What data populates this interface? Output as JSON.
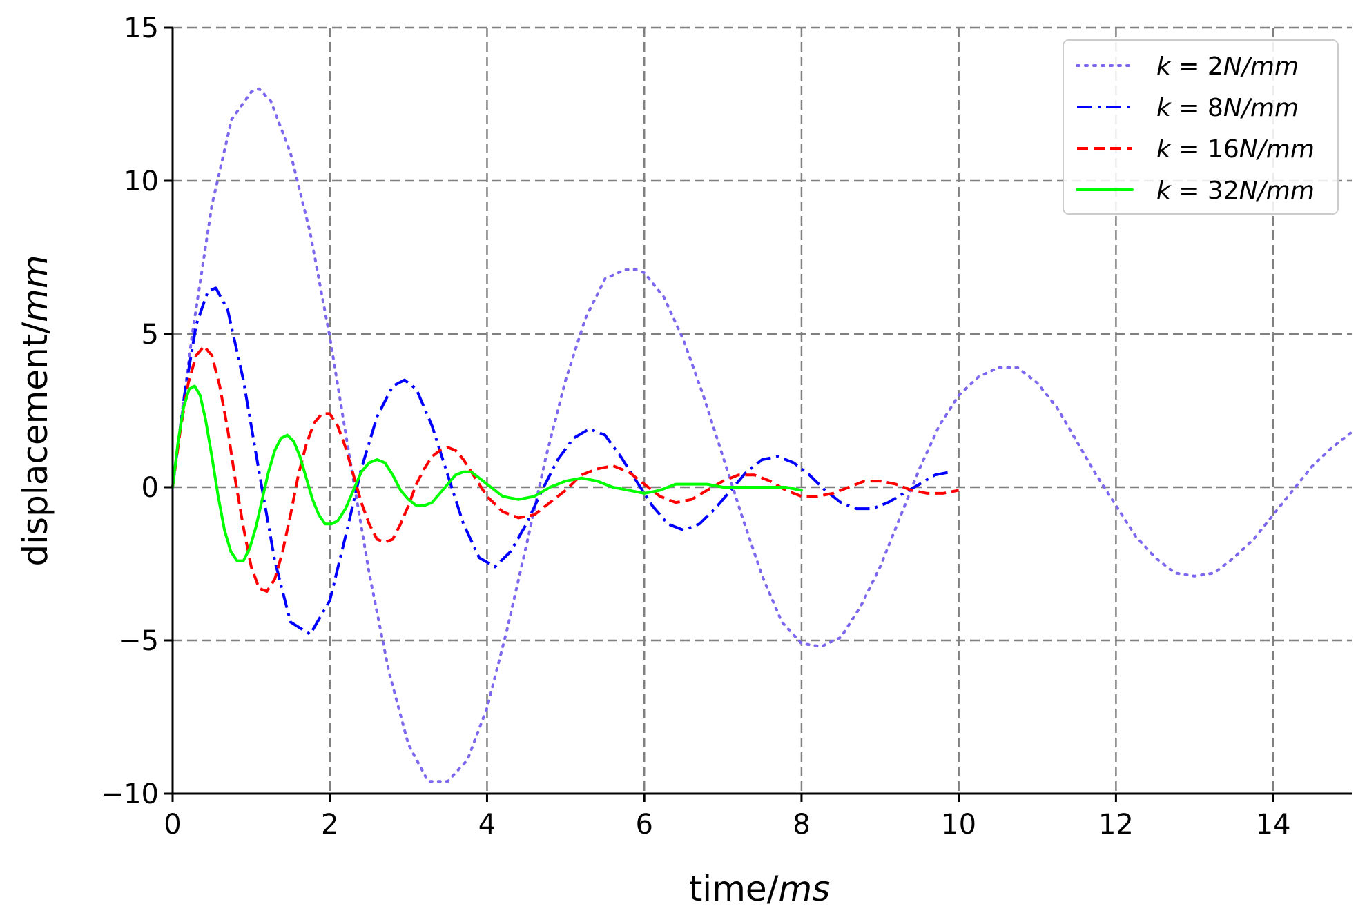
{
  "chart_data": {
    "type": "line",
    "title": "",
    "xlabel": {
      "prefix": "time/",
      "unit": "ms"
    },
    "ylabel": {
      "prefix": "displacement/",
      "unit": "mm"
    },
    "xlim": [
      0,
      15
    ],
    "ylim": [
      -10,
      15
    ],
    "xticks": [
      "0",
      "2",
      "4",
      "6",
      "8",
      "10",
      "12",
      "14"
    ],
    "yticks": [
      "−10",
      "−5",
      "0",
      "5",
      "10",
      "15"
    ],
    "grid": true,
    "legend_position": "top-right",
    "series": [
      {
        "name": "k = 2N/mm",
        "legend": {
          "var": "k",
          "eq": " = ",
          "num": "2",
          "unit": "N/mm"
        },
        "color": "#7b68ee",
        "linestyle": "dotted",
        "x": [
          0,
          0.25,
          0.5,
          0.75,
          1.0,
          1.1,
          1.25,
          1.5,
          1.75,
          2.0,
          2.25,
          2.5,
          2.75,
          3.0,
          3.25,
          3.5,
          3.75,
          4.0,
          4.25,
          4.5,
          4.75,
          5.0,
          5.25,
          5.5,
          5.75,
          5.9,
          6.0,
          6.25,
          6.5,
          6.75,
          7.0,
          7.25,
          7.5,
          7.75,
          8.0,
          8.25,
          8.5,
          8.75,
          9.0,
          9.25,
          9.5,
          9.75,
          10.0,
          10.25,
          10.5,
          10.65,
          10.75,
          11.0,
          11.25,
          11.5,
          11.75,
          12.0,
          12.25,
          12.5,
          12.75,
          13.0,
          13.25,
          13.5,
          13.75,
          14.0,
          14.25,
          14.5,
          14.75,
          15.0
        ],
        "y": [
          0,
          5.0,
          9.2,
          12.0,
          12.9,
          13.0,
          12.6,
          10.9,
          8.3,
          4.9,
          1.0,
          -2.8,
          -6.0,
          -8.4,
          -9.6,
          -9.6,
          -8.9,
          -7.2,
          -4.7,
          -1.9,
          1.0,
          3.5,
          5.5,
          6.8,
          7.1,
          7.1,
          7.0,
          6.2,
          4.8,
          3.0,
          1.0,
          -1.0,
          -2.9,
          -4.4,
          -5.1,
          -5.2,
          -4.9,
          -3.9,
          -2.6,
          -1.0,
          0.6,
          2.0,
          3.0,
          3.6,
          3.9,
          3.9,
          3.9,
          3.4,
          2.6,
          1.5,
          0.4,
          -0.6,
          -1.6,
          -2.3,
          -2.8,
          -2.9,
          -2.8,
          -2.3,
          -1.7,
          -0.9,
          -0.1,
          0.7,
          1.3,
          1.8
        ]
      },
      {
        "name": "k = 8N/mm",
        "legend": {
          "var": "k",
          "eq": " = ",
          "num": "8",
          "unit": "N/mm"
        },
        "color": "#0000ff",
        "linestyle": "dashdot",
        "x": [
          0,
          0.15,
          0.3,
          0.45,
          0.55,
          0.7,
          0.9,
          1.1,
          1.3,
          1.5,
          1.75,
          2.0,
          2.2,
          2.4,
          2.6,
          2.8,
          2.95,
          3.1,
          3.3,
          3.5,
          3.7,
          3.9,
          4.1,
          4.3,
          4.5,
          4.7,
          4.9,
          5.1,
          5.3,
          5.5,
          5.7,
          5.9,
          6.1,
          6.3,
          6.5,
          6.7,
          6.9,
          7.1,
          7.3,
          7.5,
          7.7,
          7.9,
          8.1,
          8.3,
          8.5,
          8.7,
          8.9,
          9.1,
          9.3,
          9.5,
          9.7,
          9.9
        ],
        "y": [
          0,
          3.0,
          5.3,
          6.4,
          6.5,
          5.8,
          3.5,
          0.5,
          -2.4,
          -4.4,
          -4.8,
          -3.7,
          -1.6,
          0.6,
          2.3,
          3.3,
          3.5,
          3.2,
          2.0,
          0.4,
          -1.2,
          -2.3,
          -2.6,
          -2.1,
          -1.2,
          -0.1,
          0.9,
          1.6,
          1.9,
          1.7,
          1.0,
          0.2,
          -0.6,
          -1.2,
          -1.4,
          -1.2,
          -0.7,
          -0.1,
          0.5,
          0.9,
          1.0,
          0.8,
          0.4,
          -0.1,
          -0.5,
          -0.7,
          -0.7,
          -0.5,
          -0.2,
          0.1,
          0.4,
          0.5
        ]
      },
      {
        "name": "k = 16N/mm",
        "legend": {
          "var": "k",
          "eq": " = ",
          "num": "16",
          "unit": "N/mm"
        },
        "color": "#ff0000",
        "linestyle": "dashed",
        "x": [
          0,
          0.1,
          0.2,
          0.3,
          0.4,
          0.5,
          0.6,
          0.7,
          0.8,
          0.9,
          1.0,
          1.1,
          1.2,
          1.3,
          1.4,
          1.5,
          1.6,
          1.7,
          1.8,
          1.9,
          2.0,
          2.1,
          2.2,
          2.3,
          2.4,
          2.5,
          2.6,
          2.7,
          2.8,
          2.9,
          3.0,
          3.1,
          3.2,
          3.3,
          3.4,
          3.5,
          3.6,
          3.7,
          3.8,
          3.9,
          4.0,
          4.2,
          4.4,
          4.6,
          4.8,
          5.0,
          5.2,
          5.4,
          5.6,
          5.8,
          6.0,
          6.2,
          6.4,
          6.6,
          6.8,
          7.0,
          7.2,
          7.4,
          7.6,
          7.8,
          8.0,
          8.2,
          8.4,
          8.6,
          8.8,
          9.0,
          9.2,
          9.4,
          9.6,
          9.8,
          10.0
        ],
        "y": [
          0,
          1.9,
          3.4,
          4.3,
          4.6,
          4.3,
          3.3,
          1.9,
          0.2,
          -1.3,
          -2.6,
          -3.3,
          -3.4,
          -3.0,
          -2.1,
          -0.9,
          0.4,
          1.4,
          2.1,
          2.4,
          2.4,
          2.0,
          1.3,
          0.4,
          -0.5,
          -1.2,
          -1.7,
          -1.8,
          -1.7,
          -1.2,
          -0.6,
          0.1,
          0.6,
          1.0,
          1.2,
          1.3,
          1.2,
          0.9,
          0.5,
          0.1,
          -0.3,
          -0.8,
          -1.0,
          -0.9,
          -0.5,
          -0.1,
          0.4,
          0.6,
          0.7,
          0.5,
          0.1,
          -0.3,
          -0.5,
          -0.4,
          -0.1,
          0.2,
          0.4,
          0.4,
          0.2,
          -0.1,
          -0.3,
          -0.3,
          -0.2,
          0.0,
          0.2,
          0.2,
          0.1,
          -0.1,
          -0.2,
          -0.2,
          -0.1
        ]
      },
      {
        "name": "k = 32N/mm",
        "legend": {
          "var": "k",
          "eq": " = ",
          "num": "32",
          "unit": "N/mm"
        },
        "color": "#00ff00",
        "linestyle": "solid",
        "x": [
          0,
          0.07,
          0.14,
          0.21,
          0.28,
          0.35,
          0.42,
          0.5,
          0.58,
          0.66,
          0.74,
          0.82,
          0.9,
          0.98,
          1.06,
          1.14,
          1.22,
          1.3,
          1.38,
          1.46,
          1.54,
          1.62,
          1.7,
          1.78,
          1.86,
          1.94,
          2.02,
          2.1,
          2.2,
          2.3,
          2.4,
          2.5,
          2.6,
          2.7,
          2.8,
          2.9,
          3.0,
          3.1,
          3.2,
          3.3,
          3.4,
          3.5,
          3.6,
          3.7,
          3.8,
          3.9,
          4.0,
          4.2,
          4.4,
          4.6,
          4.8,
          5.0,
          5.2,
          5.4,
          5.6,
          5.8,
          6.0,
          6.2,
          6.4,
          6.6,
          6.8,
          7.0,
          7.2,
          7.4,
          7.6,
          7.8,
          8.0
        ],
        "y": [
          0,
          1.5,
          2.6,
          3.2,
          3.3,
          3.0,
          2.2,
          1.0,
          -0.3,
          -1.4,
          -2.1,
          -2.4,
          -2.4,
          -2.0,
          -1.3,
          -0.4,
          0.5,
          1.2,
          1.6,
          1.7,
          1.5,
          1.0,
          0.3,
          -0.4,
          -0.9,
          -1.2,
          -1.2,
          -1.1,
          -0.7,
          -0.1,
          0.5,
          0.8,
          0.9,
          0.8,
          0.4,
          -0.1,
          -0.4,
          -0.6,
          -0.6,
          -0.5,
          -0.2,
          0.1,
          0.4,
          0.5,
          0.5,
          0.3,
          0.1,
          -0.3,
          -0.4,
          -0.3,
          0.0,
          0.2,
          0.3,
          0.2,
          0.0,
          -0.1,
          -0.2,
          -0.1,
          0.1,
          0.1,
          0.1,
          0.0,
          0.0,
          0.0,
          0.0,
          0.0,
          -0.1
        ]
      }
    ]
  }
}
